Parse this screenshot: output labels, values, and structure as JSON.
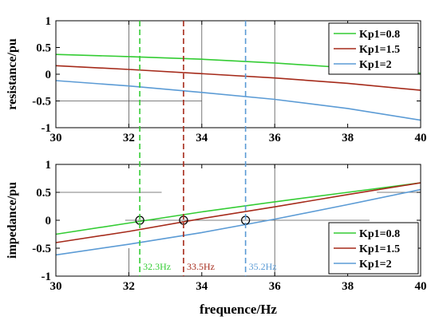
{
  "chart_data": [
    {
      "type": "line",
      "ylabel": "resistance/pu",
      "xlim": [
        30,
        40
      ],
      "ylim": [
        -1,
        1
      ],
      "xticks": [
        30,
        32,
        34,
        36,
        38,
        40
      ],
      "yticks": [
        -1,
        -0.5,
        0,
        0.5,
        1
      ],
      "ytick_labels": [
        "-1",
        "-0.5",
        "0",
        "0.5",
        "1"
      ],
      "grid": "partial",
      "legend_position": "top-right",
      "series": [
        {
          "name": "Kp1=0.8",
          "color": "#33cc33",
          "x": [
            30,
            32,
            34,
            36,
            38,
            40
          ],
          "values": [
            0.37,
            0.33,
            0.28,
            0.21,
            0.12,
            0.02
          ]
        },
        {
          "name": "Kp1=1.5",
          "color": "#a52a1a",
          "x": [
            30,
            32,
            34,
            36,
            38,
            40
          ],
          "values": [
            0.16,
            0.09,
            0.01,
            -0.07,
            -0.17,
            -0.3
          ]
        },
        {
          "name": "Kp1=2",
          "color": "#5b9bd5",
          "x": [
            30,
            32,
            34,
            36,
            38,
            40
          ],
          "values": [
            -0.12,
            -0.22,
            -0.34,
            -0.47,
            -0.64,
            -0.86
          ]
        }
      ],
      "vlines": [
        {
          "x": 32.3,
          "color": "#33cc33"
        },
        {
          "x": 33.5,
          "color": "#a52a1a"
        },
        {
          "x": 35.2,
          "color": "#5b9bd5"
        }
      ]
    },
    {
      "type": "line",
      "ylabel": "impedance/pu",
      "xlabel": "frequence/Hz",
      "xlim": [
        30,
        40
      ],
      "ylim": [
        -1,
        1
      ],
      "xticks": [
        30,
        32,
        34,
        36,
        38,
        40
      ],
      "yticks": [
        -1,
        -0.5,
        0,
        0.5,
        1
      ],
      "ytick_labels": [
        "-1",
        "-0.5",
        "0",
        "0.5",
        "1"
      ],
      "grid": "partial",
      "legend_position": "bottom-right",
      "series": [
        {
          "name": "Kp1=0.8",
          "color": "#33cc33",
          "x": [
            30,
            32,
            34,
            36,
            38,
            40
          ],
          "values": [
            -0.25,
            -0.05,
            0.15,
            0.33,
            0.5,
            0.67
          ]
        },
        {
          "name": "Kp1=1.5",
          "color": "#a52a1a",
          "x": [
            30,
            32,
            34,
            36,
            38,
            40
          ],
          "values": [
            -0.4,
            -0.2,
            0.03,
            0.24,
            0.46,
            0.67
          ]
        },
        {
          "name": "Kp1=2",
          "color": "#5b9bd5",
          "x": [
            30,
            32,
            34,
            36,
            38,
            40
          ],
          "values": [
            -0.62,
            -0.43,
            -0.22,
            0.02,
            0.28,
            0.55
          ]
        }
      ],
      "markers": [
        {
          "x": 32.3,
          "y": 0
        },
        {
          "x": 33.5,
          "y": 0
        },
        {
          "x": 35.2,
          "y": 0
        }
      ],
      "vlines": [
        {
          "x": 32.3,
          "color": "#33cc33"
        },
        {
          "x": 33.5,
          "color": "#a52a1a"
        },
        {
          "x": 35.2,
          "color": "#5b9bd5"
        }
      ],
      "annotations": [
        {
          "text": "32.3Hz",
          "x": 32.3,
          "color": "#33cc33"
        },
        {
          "text": "33.5Hz",
          "x": 33.5,
          "color": "#a52a1a"
        },
        {
          "text": "35.2Hz",
          "x": 35.2,
          "color": "#5b9bd5"
        }
      ]
    }
  ]
}
